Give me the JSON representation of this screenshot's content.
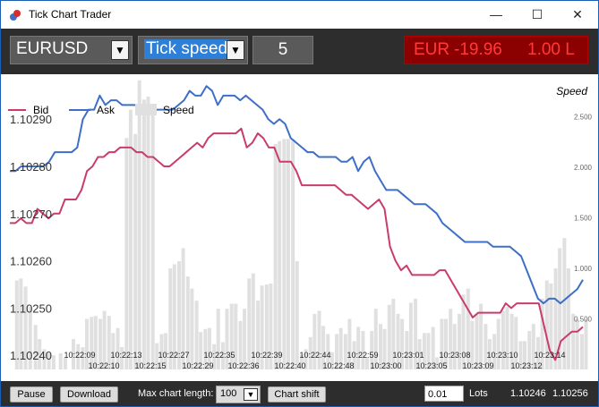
{
  "window": {
    "title": "Tick Chart Trader",
    "minimize": "—",
    "maximize": "☐",
    "close": "✕"
  },
  "toolbar": {
    "symbol": "EURUSD",
    "chart_type": "Tick speed",
    "tick_value": "5",
    "pnl_currency": "EUR",
    "pnl_value": "-19.96",
    "position": "1.00 L"
  },
  "chart": {
    "legend": {
      "bid": "Bid",
      "ask": "Ask",
      "speed": "Speed"
    },
    "speed_axis_title": "Speed",
    "colors": {
      "bid": "#c93c6b",
      "ask": "#3d6fc7",
      "speed": "#e0e0e0"
    }
  },
  "bottom": {
    "pause": "Pause",
    "download": "Download",
    "max_length_label": "Max chart length:",
    "max_length_value": "100",
    "chart_shift": "Chart shift",
    "lots_value": "0.01",
    "lots_label": "Lots",
    "bid_price": "1.10246",
    "ask_price": "1.10256"
  },
  "chart_data": {
    "type": "line",
    "price_ticks": [
      "1.10290",
      "1.10280",
      "1.10270",
      "1.10260",
      "1.10250",
      "1.10240"
    ],
    "price_tick_values": [
      1.1029,
      1.1028,
      1.1027,
      1.1026,
      1.1025,
      1.1024
    ],
    "price_range": [
      1.10237,
      1.10298
    ],
    "speed_ticks": [
      "2.500",
      "2.000",
      "1.500",
      "1.000",
      "0.500"
    ],
    "speed_tick_values": [
      2.5,
      2.0,
      1.5,
      1.0,
      0.5
    ],
    "speed_range": [
      0,
      2.85
    ],
    "time_labels_top": [
      "10:22:09",
      "10:22:13",
      "10:22:27",
      "10:22:35",
      "10:22:39",
      "10:22:44",
      "10:22:59",
      "10:23:01",
      "10:23:08",
      "10:23:10",
      "10:23:14"
    ],
    "time_labels_bottom": [
      "10:22:10",
      "10:22:15",
      "10:22:29",
      "10:22:36",
      "10:22:40",
      "10:22:48",
      "10:23:00",
      "10:23:05",
      "10:23:09",
      "10:23:12"
    ],
    "series": [
      {
        "name": "Bid",
        "values": [
          1.10268,
          1.10268,
          1.10269,
          1.10268,
          1.10268,
          1.10271,
          1.1027,
          1.10269,
          1.1027,
          1.1027,
          1.10273,
          1.10273,
          1.10273,
          1.10275,
          1.10279,
          1.1028,
          1.10282,
          1.10282,
          1.10283,
          1.10283,
          1.10284,
          1.10284,
          1.10284,
          1.10283,
          1.10283,
          1.10282,
          1.10282,
          1.10281,
          1.1028,
          1.1028,
          1.10281,
          1.10282,
          1.10283,
          1.10284,
          1.10285,
          1.10284,
          1.10286,
          1.10287,
          1.10287,
          1.10287,
          1.10287,
          1.10287,
          1.10288,
          1.10284,
          1.10285,
          1.10287,
          1.10286,
          1.10284,
          1.10284,
          1.10281,
          1.10281,
          1.10281,
          1.10279,
          1.10276,
          1.10276,
          1.10276,
          1.10276,
          1.10276,
          1.10276,
          1.10276,
          1.10275,
          1.10274,
          1.10274,
          1.10273,
          1.10272,
          1.10271,
          1.10272,
          1.10273,
          1.10271,
          1.10263,
          1.1026,
          1.10258,
          1.10259,
          1.10257,
          1.10257,
          1.10257,
          1.10257,
          1.10257,
          1.10258,
          1.10258,
          1.10256,
          1.10254,
          1.10252,
          1.1025,
          1.10248,
          1.10249,
          1.10249,
          1.10249,
          1.10249,
          1.10249,
          1.10251,
          1.1025,
          1.10251,
          1.10251,
          1.10251,
          1.10251,
          1.10251,
          1.10246,
          1.10241,
          1.10239,
          1.10243,
          1.10244,
          1.10245,
          1.10245,
          1.10246
        ]
      },
      {
        "name": "Ask",
        "values": [
          1.10279,
          1.10279,
          1.1028,
          1.1028,
          1.1028,
          1.1028,
          1.1028,
          1.10281,
          1.10283,
          1.10283,
          1.10283,
          1.10283,
          1.10284,
          1.1029,
          1.10292,
          1.10292,
          1.10295,
          1.10293,
          1.10294,
          1.10294,
          1.10293,
          1.10293,
          1.10293,
          1.10293,
          1.10293,
          1.10292,
          1.10292,
          1.10292,
          1.10292,
          1.10292,
          1.10293,
          1.10294,
          1.10296,
          1.10295,
          1.10295,
          1.10297,
          1.10296,
          1.10293,
          1.10295,
          1.10295,
          1.10295,
          1.10294,
          1.10295,
          1.10294,
          1.10293,
          1.10292,
          1.1029,
          1.10289,
          1.1029,
          1.10289,
          1.10286,
          1.10285,
          1.10284,
          1.10283,
          1.10283,
          1.10282,
          1.10282,
          1.10282,
          1.10282,
          1.10281,
          1.10281,
          1.10282,
          1.10279,
          1.10281,
          1.10282,
          1.10279,
          1.10277,
          1.10275,
          1.10275,
          1.10275,
          1.10274,
          1.10273,
          1.10272,
          1.10272,
          1.10272,
          1.10271,
          1.1027,
          1.10268,
          1.10267,
          1.10266,
          1.10265,
          1.10264,
          1.10264,
          1.10264,
          1.10264,
          1.10264,
          1.10263,
          1.10263,
          1.10263,
          1.10263,
          1.10262,
          1.10261,
          1.10258,
          1.10255,
          1.10252,
          1.10251,
          1.10252,
          1.10252,
          1.10251,
          1.10252,
          1.10253,
          1.10254,
          1.10256
        ]
      },
      {
        "name": "Speed",
        "values": [
          0.35,
          0.42,
          0.65,
          0.8,
          0.86,
          0.86,
          0.65,
          0.5,
          0.48,
          0.62,
          0.48,
          0.42,
          0.38,
          0.33,
          0.3,
          0.28,
          0.35,
          0.3,
          0.5,
          0.3,
          0.35,
          0.4,
          0.5,
          0.52,
          0.55,
          0.54,
          0.5,
          0.62,
          0.55,
          0.45,
          0.4,
          0.6,
          2.35,
          2.68,
          2.65,
          2.88,
          2.63,
          2.73,
          2.8,
          2.85,
          0.45,
          0.38,
          0.5,
          0.5,
          0.55,
          0.6,
          0.62,
          0.71,
          0.58,
          0.6,
          0.5,
          0.41,
          0.45,
          0.31,
          0.35,
          0.42,
          0.32,
          0.45,
          0.5,
          0.55,
          0.38,
          0.52,
          0.63,
          0.73,
          0.71,
          0.75,
          0.71,
          0.5,
          0.58,
          0.6,
          0.58,
          0.6,
          0.73,
          0.82,
          0.9,
          0.55,
          0.72,
          1.0,
          1.55,
          0.85,
          0.45,
          0.65,
          0.3,
          0.45,
          0.22,
          0.35,
          0.3,
          0.25,
          0.18,
          0.22,
          0.3,
          0.28,
          0.25,
          0.35,
          0.32,
          0.3,
          0.5,
          0.3,
          0.36,
          0.48,
          0.25,
          0.3,
          0.35,
          0.55
        ]
      }
    ],
    "speed_bars": [
      {
        "x": 1.5,
        "v": 0.88
      },
      {
        "x": 2.2,
        "v": 0.9
      },
      {
        "x": 3.0,
        "v": 0.82
      },
      {
        "x": 3.8,
        "v": 0.62
      },
      {
        "x": 4.7,
        "v": 0.44
      },
      {
        "x": 5.4,
        "v": 0.3
      },
      {
        "x": 6.2,
        "v": 0.2
      },
      {
        "x": 7.0,
        "v": 0.16
      },
      {
        "x": 7.8,
        "v": 0.14
      },
      {
        "x": 9.0,
        "v": 0.16
      },
      {
        "x": 9.8,
        "v": 0.12
      },
      {
        "x": 11.2,
        "v": 0.3
      },
      {
        "x": 12.0,
        "v": 0.25
      },
      {
        "x": 12.8,
        "v": 0.22
      },
      {
        "x": 13.5,
        "v": 0.5
      },
      {
        "x": 14.3,
        "v": 0.52
      },
      {
        "x": 15.0,
        "v": 0.53
      },
      {
        "x": 15.8,
        "v": 0.5
      },
      {
        "x": 16.5,
        "v": 0.58
      },
      {
        "x": 17.3,
        "v": 0.53
      },
      {
        "x": 18.0,
        "v": 0.36
      },
      {
        "x": 18.8,
        "v": 0.41
      },
      {
        "x": 19.5,
        "v": 0.22
      },
      {
        "x": 20.3,
        "v": 2.29
      },
      {
        "x": 21.0,
        "v": 2.57
      },
      {
        "x": 21.8,
        "v": 2.33
      },
      {
        "x": 22.5,
        "v": 2.86
      },
      {
        "x": 23.3,
        "v": 2.67
      },
      {
        "x": 24.0,
        "v": 2.7
      },
      {
        "x": 24.8,
        "v": 2.62
      },
      {
        "x": 25.5,
        "v": 0.26
      },
      {
        "x": 26.3,
        "v": 0.35
      },
      {
        "x": 27.0,
        "v": 0.36
      },
      {
        "x": 27.8,
        "v": 1.0
      },
      {
        "x": 28.5,
        "v": 1.04
      },
      {
        "x": 29.3,
        "v": 1.07
      },
      {
        "x": 30.0,
        "v": 1.2
      },
      {
        "x": 30.8,
        "v": 0.92
      },
      {
        "x": 31.5,
        "v": 0.8
      },
      {
        "x": 32.3,
        "v": 0.68
      },
      {
        "x": 33.0,
        "v": 0.37
      },
      {
        "x": 33.8,
        "v": 0.4
      },
      {
        "x": 34.5,
        "v": 0.41
      },
      {
        "x": 35.3,
        "v": 0.25
      },
      {
        "x": 36.0,
        "v": 0.6
      },
      {
        "x": 36.8,
        "v": 0.27
      },
      {
        "x": 37.5,
        "v": 0.6
      },
      {
        "x": 38.3,
        "v": 0.65
      },
      {
        "x": 39.0,
        "v": 0.65
      },
      {
        "x": 39.8,
        "v": 0.48
      },
      {
        "x": 40.5,
        "v": 0.6
      },
      {
        "x": 41.3,
        "v": 0.9
      },
      {
        "x": 42.0,
        "v": 0.95
      },
      {
        "x": 42.8,
        "v": 0.68
      },
      {
        "x": 43.5,
        "v": 0.83
      },
      {
        "x": 44.3,
        "v": 0.84
      },
      {
        "x": 45.0,
        "v": 0.85
      },
      {
        "x": 45.8,
        "v": 2.23
      },
      {
        "x": 46.5,
        "v": 2.26
      },
      {
        "x": 47.3,
        "v": 2.28
      },
      {
        "x": 48.0,
        "v": 2.28
      },
      {
        "x": 48.8,
        "v": 2.28
      },
      {
        "x": 49.5,
        "v": 1.07
      },
      {
        "x": 50.3,
        "v": 0.15
      },
      {
        "x": 51.0,
        "v": 0.2
      },
      {
        "x": 51.8,
        "v": 0.32
      },
      {
        "x": 52.5,
        "v": 0.55
      },
      {
        "x": 53.3,
        "v": 0.58
      },
      {
        "x": 54.0,
        "v": 0.43
      },
      {
        "x": 54.8,
        "v": 0.35
      },
      {
        "x": 55.5,
        "v": 0.17
      },
      {
        "x": 56.3,
        "v": 0.35
      },
      {
        "x": 57.0,
        "v": 0.41
      },
      {
        "x": 57.8,
        "v": 0.35
      },
      {
        "x": 58.5,
        "v": 0.5
      },
      {
        "x": 59.3,
        "v": 0.28
      },
      {
        "x": 60.0,
        "v": 0.42
      },
      {
        "x": 60.8,
        "v": 0.38
      },
      {
        "x": 61.5,
        "v": 0.12
      },
      {
        "x": 62.3,
        "v": 0.38
      },
      {
        "x": 63.0,
        "v": 0.6
      },
      {
        "x": 63.8,
        "v": 0.45
      },
      {
        "x": 64.5,
        "v": 0.4
      },
      {
        "x": 65.3,
        "v": 0.64
      },
      {
        "x": 66.0,
        "v": 0.7
      },
      {
        "x": 66.8,
        "v": 0.55
      },
      {
        "x": 67.5,
        "v": 0.5
      },
      {
        "x": 68.3,
        "v": 0.38
      },
      {
        "x": 69.0,
        "v": 0.66
      },
      {
        "x": 69.8,
        "v": 0.7
      },
      {
        "x": 70.5,
        "v": 0.3
      },
      {
        "x": 71.3,
        "v": 0.36
      },
      {
        "x": 72.0,
        "v": 0.36
      },
      {
        "x": 72.8,
        "v": 0.42
      },
      {
        "x": 73.5,
        "v": 0.12
      },
      {
        "x": 74.3,
        "v": 0.5
      },
      {
        "x": 75.0,
        "v": 0.5
      },
      {
        "x": 75.8,
        "v": 0.6
      },
      {
        "x": 76.5,
        "v": 0.45
      },
      {
        "x": 77.3,
        "v": 0.55
      },
      {
        "x": 78.0,
        "v": 0.74
      },
      {
        "x": 78.8,
        "v": 0.8
      },
      {
        "x": 79.5,
        "v": 0.48
      },
      {
        "x": 80.3,
        "v": 0.55
      },
      {
        "x": 81.0,
        "v": 0.65
      },
      {
        "x": 81.8,
        "v": 0.45
      },
      {
        "x": 82.5,
        "v": 0.3
      },
      {
        "x": 83.3,
        "v": 0.35
      },
      {
        "x": 84.0,
        "v": 0.5
      },
      {
        "x": 84.8,
        "v": 0.58
      },
      {
        "x": 85.5,
        "v": 0.62
      },
      {
        "x": 86.3,
        "v": 0.55
      },
      {
        "x": 87.0,
        "v": 0.52
      },
      {
        "x": 87.8,
        "v": 0.28
      },
      {
        "x": 88.5,
        "v": 0.28
      },
      {
        "x": 89.3,
        "v": 0.38
      },
      {
        "x": 90.0,
        "v": 0.45
      },
      {
        "x": 90.8,
        "v": 0.32
      },
      {
        "x": 91.5,
        "v": 0.7
      },
      {
        "x": 92.3,
        "v": 0.88
      },
      {
        "x": 93.0,
        "v": 0.85
      },
      {
        "x": 93.8,
        "v": 1.0
      },
      {
        "x": 94.5,
        "v": 1.2
      },
      {
        "x": 95.3,
        "v": 1.3
      },
      {
        "x": 96.0,
        "v": 1.0
      },
      {
        "x": 96.8,
        "v": 0.55
      },
      {
        "x": 97.5,
        "v": 0.5
      },
      {
        "x": 98.3,
        "v": 0.35
      },
      {
        "x": 99.0,
        "v": 0.5
      }
    ]
  }
}
